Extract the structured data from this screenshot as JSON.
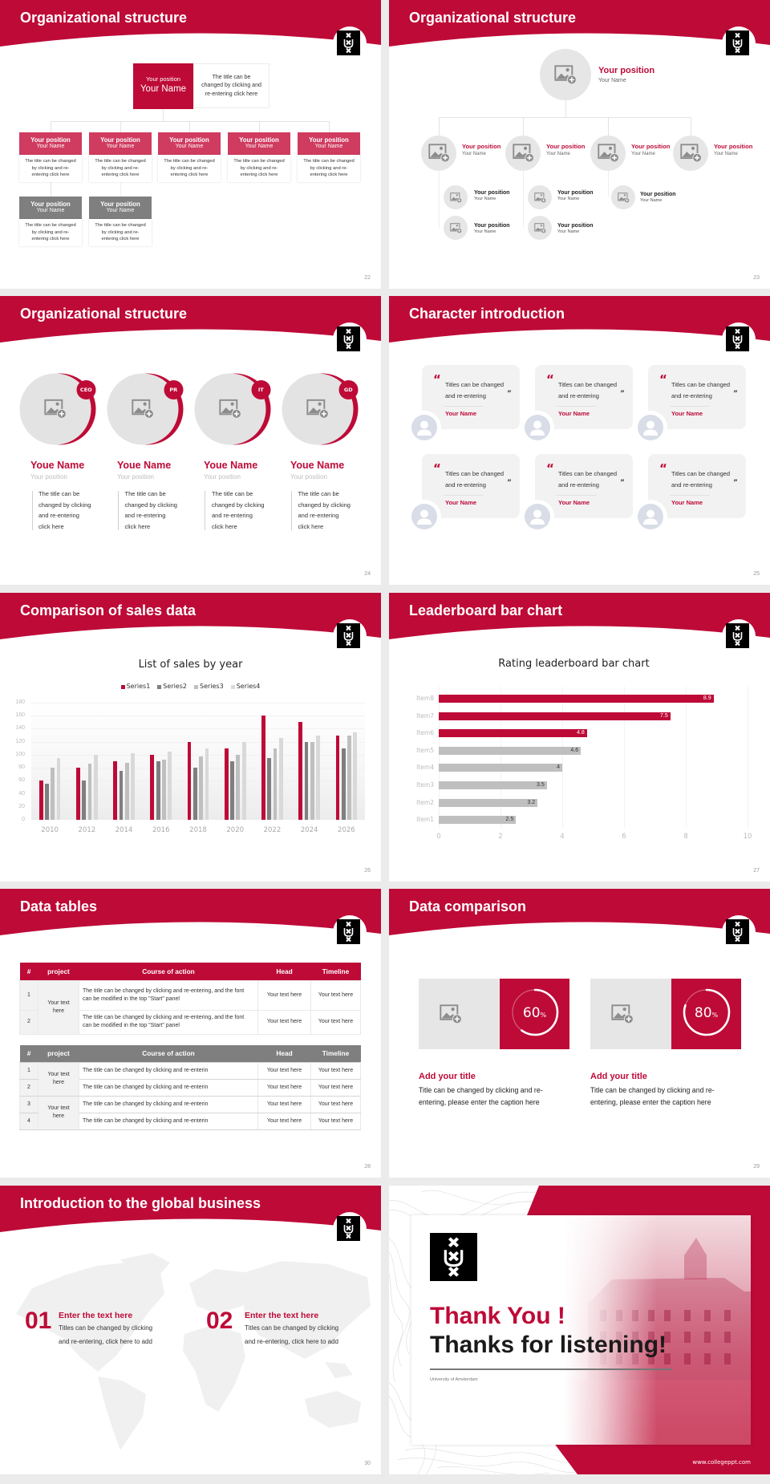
{
  "theme": {
    "primary_red": "#be0a37",
    "light_red": "#d03b60",
    "box_gray": "#7f7f7f",
    "page_bg": "#ebebeb"
  },
  "slides": [
    {
      "title": "Organizational structure",
      "page_number": "22",
      "top": {
        "position": "Your position",
        "name": "Your Name",
        "desc": [
          "The title can be",
          "changed by clicking and",
          "re-entering click here"
        ]
      },
      "level2": [
        {
          "position": "Your position",
          "name": "Your Name",
          "desc": [
            "The title can be changed",
            "by clicking and re-",
            "entering click here"
          ]
        },
        {
          "position": "Your position",
          "name": "Your Name",
          "desc": [
            "The title can be changed",
            "by clicking and re-",
            "entering click here"
          ]
        },
        {
          "position": "Your position",
          "name": "Your Name",
          "desc": [
            "The title can be changed",
            "by clicking and re-",
            "entering click here"
          ]
        },
        {
          "position": "Your position",
          "name": "Your Name",
          "desc": [
            "The title can be changed",
            "by clicking and re-",
            "entering click here"
          ]
        },
        {
          "position": "Your position",
          "name": "Your Name",
          "desc": [
            "The title can be changed",
            "by clicking and re-",
            "entering click here"
          ]
        }
      ],
      "level3": [
        {
          "position": "Your position",
          "name": "Your Name",
          "desc": [
            "The title can be changed",
            "by clicking and re-",
            "entering click here"
          ]
        },
        {
          "position": "Your position",
          "name": "Your Name",
          "desc": [
            "The title can be changed",
            "by clicking and re-",
            "entering click here"
          ]
        }
      ]
    },
    {
      "title": "Organizational structure",
      "page_number": "23",
      "top": {
        "position": "Your position",
        "name": "Your Name"
      },
      "level2": [
        {
          "position": "Your position",
          "name": "Your Name"
        },
        {
          "position": "Your position",
          "name": "Your Name"
        },
        {
          "position": "Your position",
          "name": "Your Name"
        },
        {
          "position": "Your position",
          "name": "Your Name"
        }
      ],
      "level3": [
        {
          "position": "Your position",
          "name": "Your Name"
        },
        {
          "position": "Your position",
          "name": "Your Name"
        },
        {
          "position": "Your position",
          "name": "Your Name"
        },
        {
          "position": "Your position",
          "name": "Your Name"
        },
        {
          "position": "Your position",
          "name": "Your Name"
        }
      ]
    },
    {
      "title": "Organizational structure",
      "page_number": "24",
      "members": [
        {
          "badge": "CEO",
          "name": "Youe Name",
          "position": "Your position",
          "desc": [
            "The title can be",
            "changed by clicking",
            "and re-entering",
            "click here"
          ]
        },
        {
          "badge": "PR",
          "name": "Youe Name",
          "position": "Your position",
          "desc": [
            "The title can be",
            "changed by clicking",
            "and re-entering",
            "click here"
          ]
        },
        {
          "badge": "IT",
          "name": "Youe Name",
          "position": "Your position",
          "desc": [
            "The title can be",
            "changed by clicking",
            "and re-entering",
            "click here"
          ]
        },
        {
          "badge": "GD",
          "name": "Youe Name",
          "position": "Your position",
          "desc": [
            "The title can be",
            "changed by clicking",
            "and re-entering",
            "click here"
          ]
        }
      ]
    },
    {
      "title": "Character introduction",
      "page_number": "25",
      "cards": [
        {
          "quote": [
            "Titles can be changed",
            "and re-entering"
          ],
          "name": "Your Name"
        },
        {
          "quote": [
            "Titles can be changed",
            "and re-entering"
          ],
          "name": "Your Name"
        },
        {
          "quote": [
            "Titles can be changed",
            "and re-entering"
          ],
          "name": "Your Name"
        },
        {
          "quote": [
            "Titles can be changed",
            "and re-entering"
          ],
          "name": "Your Name"
        },
        {
          "quote": [
            "Titles can be changed",
            "and re-entering"
          ],
          "name": "Your Name"
        },
        {
          "quote": [
            "Titles can be changed",
            "and re-entering"
          ],
          "name": "Your Name"
        }
      ]
    },
    {
      "title": "Comparison of sales data",
      "page_number": "26"
    },
    {
      "title": "Leaderboard bar chart",
      "page_number": "27"
    },
    {
      "title": "Data tables",
      "page_number": "28",
      "table1": {
        "headers": [
          "#",
          "project",
          "Course of action",
          "Head",
          "Timeline"
        ],
        "project": "Your text here",
        "rows": [
          {
            "num": "1",
            "action": "The title can be changed by clicking and re-entering, and the font can be modified in the top \"Start\" panel",
            "head": "Your text here",
            "timeline": "Your text here"
          },
          {
            "num": "2",
            "action": "The title can be changed by clicking and re-entering, and the font can be modified in the top \"Start\" panel",
            "head": "Your text here",
            "timeline": "Your text here"
          }
        ]
      },
      "table2": {
        "headers": [
          "#",
          "project",
          "Course of action",
          "Head",
          "Timeline"
        ],
        "projects": [
          "Your text here",
          "Your text here"
        ],
        "rows": [
          {
            "num": "1",
            "action": "The title can be changed by clicking and re-enterin",
            "head": "Your text here",
            "timeline": "Your text here"
          },
          {
            "num": "2",
            "action": "The title can be changed by clicking and re-enterin",
            "head": "Your text here",
            "timeline": "Your text here"
          },
          {
            "num": "3",
            "action": "The title can be changed by clicking and re-enterin",
            "head": "Your text here",
            "timeline": "Your text here"
          },
          {
            "num": "4",
            "action": "The title can be changed by clicking and re-enterin",
            "head": "Your text here",
            "timeline": "Your text here"
          }
        ]
      }
    },
    {
      "title": "Data comparison",
      "page_number": "29",
      "blocks": [
        {
          "percent": 60,
          "value": "60",
          "unit": "%",
          "title": "Add your title",
          "desc": [
            "Title can be changed by clicking and re-",
            "entering, please enter the caption here"
          ]
        },
        {
          "percent": 80,
          "value": "80",
          "unit": "%",
          "title": "Add your title",
          "desc": [
            "Title can be changed by clicking and re-",
            "entering, please enter the caption here"
          ]
        }
      ]
    },
    {
      "title": "Introduction to the global business",
      "page_number": "30",
      "items": [
        {
          "number": "01",
          "heading": "Enter the text here",
          "desc": [
            "Titles can be changed by clicking",
            "and re-entering, click here to add"
          ]
        },
        {
          "number": "02",
          "heading": "Enter the text here",
          "desc": [
            "Titles can be changed by clicking",
            "and re-entering, click here to add"
          ]
        }
      ]
    },
    {
      "thank_you": "Thank You !",
      "thanks": "Thanks for listening!",
      "university": "University of Amsterdam",
      "website": "www.collegeppt.com"
    }
  ],
  "chart_data": [
    {
      "type": "bar",
      "title": "List of sales by year",
      "categories": [
        "2010",
        "2012",
        "2014",
        "2016",
        "2018",
        "2020",
        "2022",
        "2024",
        "2026"
      ],
      "series": [
        {
          "name": "Series1",
          "color": "#be0a37",
          "values": [
            60,
            80,
            90,
            100,
            120,
            110,
            160,
            150,
            130
          ]
        },
        {
          "name": "Series2",
          "color": "#7f7f7f",
          "values": [
            55,
            60,
            75,
            90,
            80,
            90,
            95,
            120,
            110
          ]
        },
        {
          "name": "Series3",
          "color": "#bfbfbf",
          "values": [
            80,
            86,
            88,
            92,
            98,
            100,
            110,
            120,
            130
          ]
        },
        {
          "name": "Series4",
          "color": "#d9d9d9",
          "values": [
            95,
            100,
            102,
            105,
            110,
            120,
            126,
            130,
            135
          ]
        }
      ],
      "xlabel": "",
      "ylabel": "",
      "ylim": [
        0,
        180
      ],
      "yticks": [
        0,
        20,
        40,
        60,
        80,
        100,
        120,
        140,
        160,
        180
      ],
      "grid": true,
      "legend_position": "top"
    },
    {
      "type": "bar",
      "orientation": "horizontal",
      "title": "Rating leaderboard bar chart",
      "categories": [
        "Item8",
        "Item7",
        "Item6",
        "Item5",
        "Item4",
        "Item3",
        "Item2",
        "Item1"
      ],
      "values": [
        8.9,
        7.5,
        4.8,
        4.6,
        4,
        3.5,
        3.2,
        2.5
      ],
      "labels": [
        "8.9",
        "7.5",
        "4.8",
        "4.6",
        "4",
        "3.5",
        "3.2",
        "2.5"
      ],
      "colors": [
        "#be0a37",
        "#be0a37",
        "#be0a37",
        "#bfbfbf",
        "#bfbfbf",
        "#bfbfbf",
        "#bfbfbf",
        "#bfbfbf"
      ],
      "label_colors": [
        "#ffffff",
        "#ffffff",
        "#ffffff",
        "#333333",
        "#333333",
        "#333333",
        "#333333",
        "#333333"
      ],
      "xlim": [
        0,
        10
      ],
      "xticks": [
        0,
        2,
        4,
        6,
        8,
        10
      ],
      "grid": true
    }
  ]
}
